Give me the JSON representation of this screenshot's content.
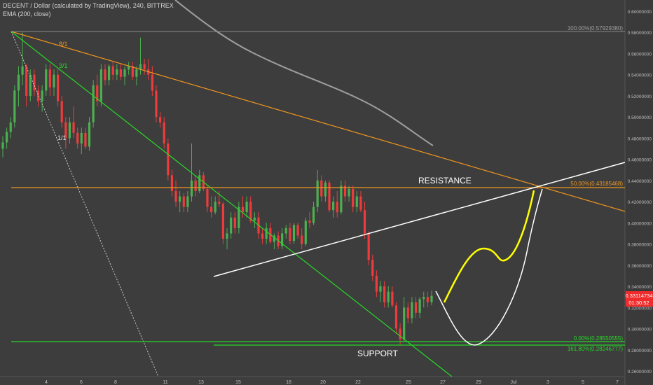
{
  "header": {
    "title": "DECENT / Dollar (calculated by TradingView), 240, BITTREX",
    "indicator": "EMA (200, close)"
  },
  "price_tag": {
    "value": "0.33114734",
    "countdown": "01:30:52",
    "color": "#ef2b2b"
  },
  "colors": {
    "up": "#4caf50",
    "down": "#ef3b3b",
    "orange": "#f0961e",
    "green": "#26d926",
    "white": "#ffffff",
    "yellow": "#ffff00",
    "ema": "#9e9e9e"
  },
  "chart_data": {
    "type": "candlestick",
    "y_axis": {
      "min": 0.25,
      "max": 0.615,
      "ticks": [
        "0.60000000",
        "0.58000000",
        "0.56000000",
        "0.54000000",
        "0.52000000",
        "0.50000000",
        "0.48000000",
        "0.46000000",
        "0.44000000",
        "0.42000000",
        "0.40000000",
        "0.38000000",
        "0.36000000",
        "0.34000000",
        "0.32000000",
        "0.30000000",
        "0.28000000",
        "0.26000000"
      ]
    },
    "x_axis": {
      "ticks": [
        "4",
        "6",
        "8",
        "11",
        "13",
        "15",
        "18",
        "20",
        "22",
        "25",
        "27",
        "29",
        "Jul",
        "3",
        "5",
        "7"
      ]
    },
    "annotations": {
      "resistance": "RESISTANCE",
      "support": "SUPPORT",
      "fib_100": "100.00%(0.57929380)",
      "fib_50": "50.00%(0.43185468)",
      "fib_0": "0.00%(0.28550555)",
      "fib_161": "161.80%(0.28246777)",
      "fan_8_1": "8/1",
      "fan_3_1": "3/1",
      "fan_1_1": "1/1"
    },
    "candles_ohlc": [
      [
        0.47,
        0.482,
        0.462,
        0.476
      ],
      [
        0.476,
        0.49,
        0.47,
        0.486
      ],
      [
        0.486,
        0.5,
        0.48,
        0.495
      ],
      [
        0.495,
        0.53,
        0.49,
        0.525
      ],
      [
        0.525,
        0.548,
        0.51,
        0.54
      ],
      [
        0.54,
        0.58,
        0.53,
        0.548
      ],
      [
        0.548,
        0.55,
        0.51,
        0.52
      ],
      [
        0.52,
        0.545,
        0.515,
        0.54
      ],
      [
        0.54,
        0.545,
        0.52,
        0.525
      ],
      [
        0.525,
        0.53,
        0.51,
        0.515
      ],
      [
        0.515,
        0.53,
        0.505,
        0.525
      ],
      [
        0.525,
        0.55,
        0.52,
        0.545
      ],
      [
        0.545,
        0.55,
        0.52,
        0.528
      ],
      [
        0.528,
        0.545,
        0.52,
        0.54
      ],
      [
        0.54,
        0.545,
        0.51,
        0.515
      ],
      [
        0.515,
        0.52,
        0.49,
        0.495
      ],
      [
        0.495,
        0.5,
        0.47,
        0.48
      ],
      [
        0.48,
        0.5,
        0.475,
        0.495
      ],
      [
        0.495,
        0.51,
        0.48,
        0.485
      ],
      [
        0.485,
        0.49,
        0.47,
        0.475
      ],
      [
        0.475,
        0.49,
        0.465,
        0.485
      ],
      [
        0.485,
        0.49,
        0.47,
        0.472
      ],
      [
        0.472,
        0.5,
        0.468,
        0.495
      ],
      [
        0.495,
        0.535,
        0.49,
        0.53
      ],
      [
        0.53,
        0.54,
        0.51,
        0.515
      ],
      [
        0.515,
        0.55,
        0.51,
        0.545
      ],
      [
        0.545,
        0.55,
        0.53,
        0.535
      ],
      [
        0.535,
        0.55,
        0.53,
        0.548
      ],
      [
        0.548,
        0.552,
        0.535,
        0.54
      ],
      [
        0.54,
        0.55,
        0.535,
        0.545
      ],
      [
        0.545,
        0.55,
        0.535,
        0.538
      ],
      [
        0.538,
        0.548,
        0.53,
        0.545
      ],
      [
        0.545,
        0.552,
        0.54,
        0.548
      ],
      [
        0.548,
        0.552,
        0.535,
        0.538
      ],
      [
        0.538,
        0.548,
        0.53,
        0.545
      ],
      [
        0.545,
        0.575,
        0.54,
        0.55
      ],
      [
        0.55,
        0.555,
        0.54,
        0.545
      ],
      [
        0.545,
        0.555,
        0.535,
        0.54
      ],
      [
        0.54,
        0.548,
        0.52,
        0.525
      ],
      [
        0.525,
        0.53,
        0.495,
        0.5
      ],
      [
        0.5,
        0.505,
        0.49,
        0.495
      ],
      [
        0.495,
        0.5,
        0.47,
        0.475
      ],
      [
        0.475,
        0.48,
        0.44,
        0.445
      ],
      [
        0.445,
        0.45,
        0.425,
        0.43
      ],
      [
        0.43,
        0.44,
        0.415,
        0.42
      ],
      [
        0.42,
        0.43,
        0.41,
        0.425
      ],
      [
        0.425,
        0.428,
        0.41,
        0.415
      ],
      [
        0.415,
        0.43,
        0.41,
        0.425
      ],
      [
        0.425,
        0.475,
        0.42,
        0.44
      ],
      [
        0.44,
        0.445,
        0.425,
        0.43
      ],
      [
        0.43,
        0.45,
        0.428,
        0.445
      ],
      [
        0.445,
        0.448,
        0.43,
        0.432
      ],
      [
        0.432,
        0.435,
        0.41,
        0.415
      ],
      [
        0.415,
        0.425,
        0.405,
        0.41
      ],
      [
        0.41,
        0.425,
        0.408,
        0.42
      ],
      [
        0.42,
        0.43,
        0.415,
        0.418
      ],
      [
        0.418,
        0.42,
        0.38,
        0.385
      ],
      [
        0.385,
        0.395,
        0.375,
        0.39
      ],
      [
        0.39,
        0.41,
        0.385,
        0.405
      ],
      [
        0.405,
        0.41,
        0.39,
        0.395
      ],
      [
        0.395,
        0.42,
        0.39,
        0.415
      ],
      [
        0.415,
        0.425,
        0.405,
        0.41
      ],
      [
        0.41,
        0.425,
        0.405,
        0.42
      ],
      [
        0.42,
        0.425,
        0.4,
        0.402
      ],
      [
        0.402,
        0.41,
        0.395,
        0.405
      ],
      [
        0.405,
        0.41,
        0.385,
        0.39
      ],
      [
        0.39,
        0.395,
        0.38,
        0.385
      ],
      [
        0.385,
        0.4,
        0.38,
        0.395
      ],
      [
        0.395,
        0.4,
        0.38,
        0.382
      ],
      [
        0.382,
        0.39,
        0.375,
        0.388
      ],
      [
        0.388,
        0.392,
        0.375,
        0.378
      ],
      [
        0.378,
        0.395,
        0.375,
        0.39
      ],
      [
        0.39,
        0.398,
        0.385,
        0.395
      ],
      [
        0.395,
        0.4,
        0.38,
        0.383
      ],
      [
        0.383,
        0.4,
        0.38,
        0.398
      ],
      [
        0.398,
        0.4,
        0.385,
        0.388
      ],
      [
        0.388,
        0.395,
        0.375,
        0.38
      ],
      [
        0.38,
        0.405,
        0.378,
        0.402
      ],
      [
        0.402,
        0.41,
        0.395,
        0.4
      ],
      [
        0.4,
        0.42,
        0.398,
        0.415
      ],
      [
        0.415,
        0.45,
        0.41,
        0.44
      ],
      [
        0.44,
        0.445,
        0.42,
        0.425
      ],
      [
        0.425,
        0.44,
        0.42,
        0.438
      ],
      [
        0.438,
        0.44,
        0.41,
        0.412
      ],
      [
        0.412,
        0.425,
        0.405,
        0.42
      ],
      [
        0.42,
        0.43,
        0.405,
        0.41
      ],
      [
        0.41,
        0.44,
        0.408,
        0.435
      ],
      [
        0.435,
        0.44,
        0.42,
        0.425
      ],
      [
        0.425,
        0.435,
        0.42,
        0.432
      ],
      [
        0.432,
        0.435,
        0.41,
        0.415
      ],
      [
        0.415,
        0.43,
        0.41,
        0.425
      ],
      [
        0.425,
        0.43,
        0.41,
        0.412
      ],
      [
        0.412,
        0.42,
        0.385,
        0.39
      ],
      [
        0.39,
        0.392,
        0.36,
        0.365
      ],
      [
        0.365,
        0.37,
        0.345,
        0.35
      ],
      [
        0.35,
        0.355,
        0.33,
        0.335
      ],
      [
        0.335,
        0.345,
        0.325,
        0.34
      ],
      [
        0.34,
        0.345,
        0.32,
        0.325
      ],
      [
        0.325,
        0.34,
        0.32,
        0.335
      ],
      [
        0.335,
        0.34,
        0.32,
        0.322
      ],
      [
        0.322,
        0.325,
        0.295,
        0.3
      ],
      [
        0.3,
        0.305,
        0.285,
        0.29
      ],
      [
        0.29,
        0.33,
        0.288,
        0.32
      ],
      [
        0.32,
        0.325,
        0.305,
        0.31
      ],
      [
        0.31,
        0.33,
        0.305,
        0.325
      ],
      [
        0.325,
        0.33,
        0.31,
        0.315
      ],
      [
        0.315,
        0.33,
        0.31,
        0.328
      ],
      [
        0.328,
        0.335,
        0.32,
        0.33
      ],
      [
        0.33,
        0.335,
        0.32,
        0.325
      ],
      [
        0.325,
        0.336,
        0.322,
        0.331
      ]
    ]
  }
}
